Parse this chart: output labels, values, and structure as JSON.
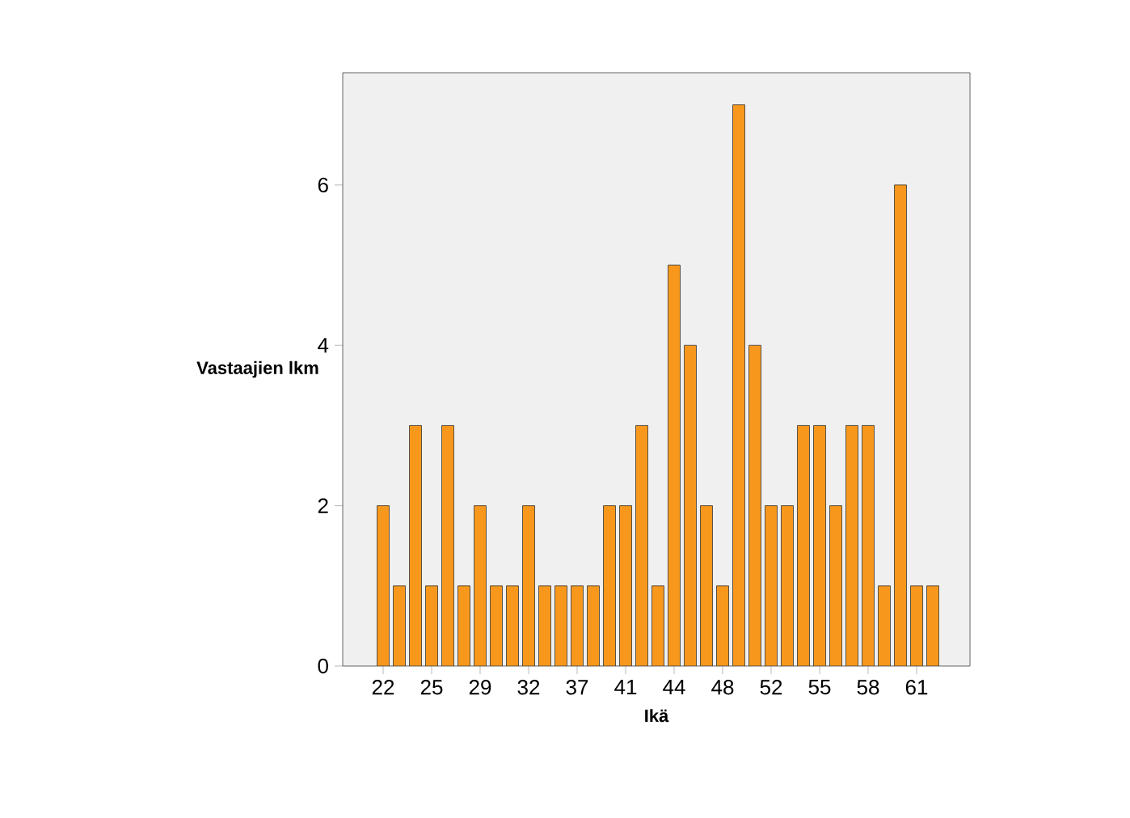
{
  "chart_data": {
    "type": "bar",
    "xlabel": "Ikä",
    "ylabel": "Vastaajien lkm",
    "categories": [
      "22",
      null,
      null,
      "25",
      null,
      null,
      "29",
      null,
      null,
      "32",
      null,
      null,
      "37",
      null,
      null,
      "41",
      null,
      null,
      "44",
      null,
      null,
      "48",
      null,
      null,
      "52",
      null,
      null,
      "55",
      null,
      null,
      "58",
      null,
      null,
      "61",
      null
    ],
    "values": [
      2,
      1,
      3,
      1,
      3,
      1,
      2,
      1,
      1,
      2,
      1,
      1,
      1,
      1,
      2,
      2,
      3,
      1,
      5,
      4,
      2,
      1,
      7,
      4,
      2,
      2,
      3,
      3,
      2,
      3,
      3,
      1,
      6,
      1,
      1
    ],
    "color": "#f7981d",
    "ylim": [
      0,
      7.4
    ],
    "yticks": [
      0,
      2,
      4,
      6
    ],
    "grid": false
  }
}
